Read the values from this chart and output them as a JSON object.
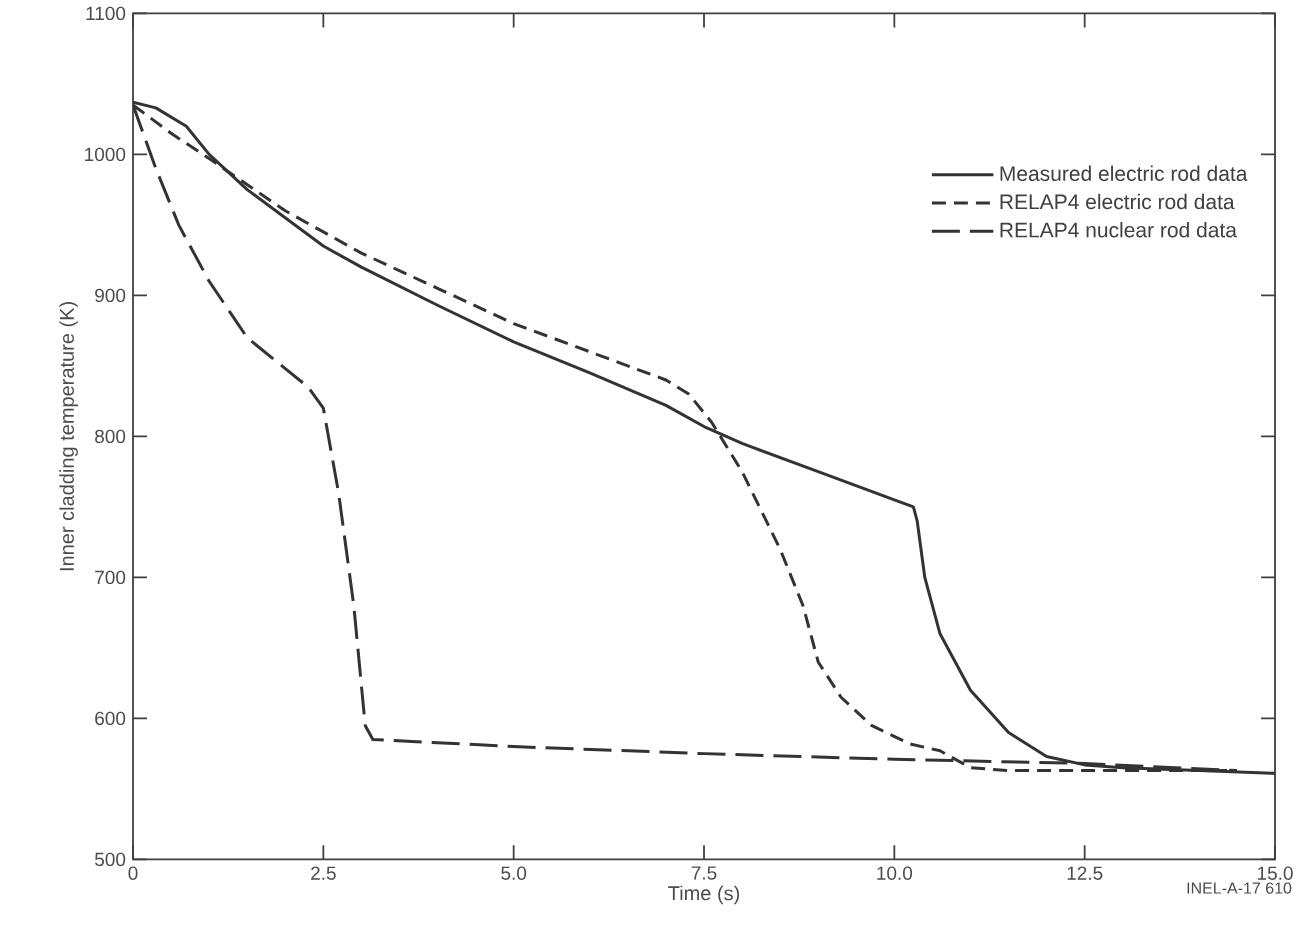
{
  "chart_data": {
    "type": "line",
    "xlabel": "Time (s)",
    "ylabel": "Inner cladding temperature (K)",
    "xlim": [
      0,
      15
    ],
    "ylim": [
      500,
      1100
    ],
    "xticks": [
      0,
      2.5,
      {
        "value": 5,
        "label": "5.0"
      },
      7.5,
      {
        "value": 10,
        "label": "10.0"
      },
      12.5,
      {
        "value": 15,
        "label": "15.0"
      }
    ],
    "yticks": [
      500,
      600,
      700,
      800,
      900,
      1000,
      1100
    ],
    "legend": "top right",
    "annotations": [
      "INEL-A-17 610"
    ],
    "series": [
      {
        "name": "Measured electric rod data",
        "color": "#333333",
        "line_style": "solid",
        "x": [
          0,
          0.3,
          0.7,
          1.0,
          1.5,
          2.0,
          2.5,
          3.0,
          4.0,
          5.0,
          6.0,
          7.0,
          7.5,
          8.0,
          9.0,
          10.0,
          10.25,
          10.3,
          10.4,
          10.6,
          11.0,
          11.5,
          12.0,
          12.5,
          13.0,
          14.0,
          15.0
        ],
        "values": [
          1037,
          1033,
          1020,
          1000,
          975,
          955,
          935,
          920,
          893,
          867,
          845,
          822,
          807,
          795,
          775,
          755,
          750,
          740,
          700,
          660,
          620,
          590,
          573,
          567,
          565,
          563,
          561
        ]
      },
      {
        "name": "RELAP4 electric rod data",
        "color": "#333333",
        "line_style": "dashed",
        "x": [
          0,
          0.5,
          1.0,
          2.0,
          2.5,
          3.0,
          4.0,
          5.0,
          6.0,
          7.0,
          7.3,
          7.6,
          8.0,
          8.5,
          8.8,
          9.0,
          9.3,
          9.7,
          10.2,
          10.6,
          11.0,
          11.5,
          12.0,
          13.0,
          14.0,
          14.5
        ],
        "values": [
          1035,
          1015,
          997,
          960,
          945,
          930,
          905,
          880,
          860,
          840,
          830,
          810,
          775,
          720,
          680,
          640,
          615,
          595,
          582,
          577,
          565,
          563,
          563,
          563,
          563,
          563
        ]
      },
      {
        "name": "RELAP4 nuclear rod data",
        "color": "#333333",
        "line_style": "long dashed",
        "x": [
          0,
          0.3,
          0.6,
          1.0,
          1.5,
          2.0,
          2.3,
          2.5,
          2.7,
          2.9,
          3.05,
          3.15,
          5.0,
          7.5,
          10.0,
          12.5,
          14.5
        ],
        "values": [
          1035,
          990,
          950,
          910,
          870,
          848,
          835,
          820,
          760,
          680,
          595,
          585,
          580,
          575,
          571,
          568,
          563
        ]
      }
    ]
  }
}
